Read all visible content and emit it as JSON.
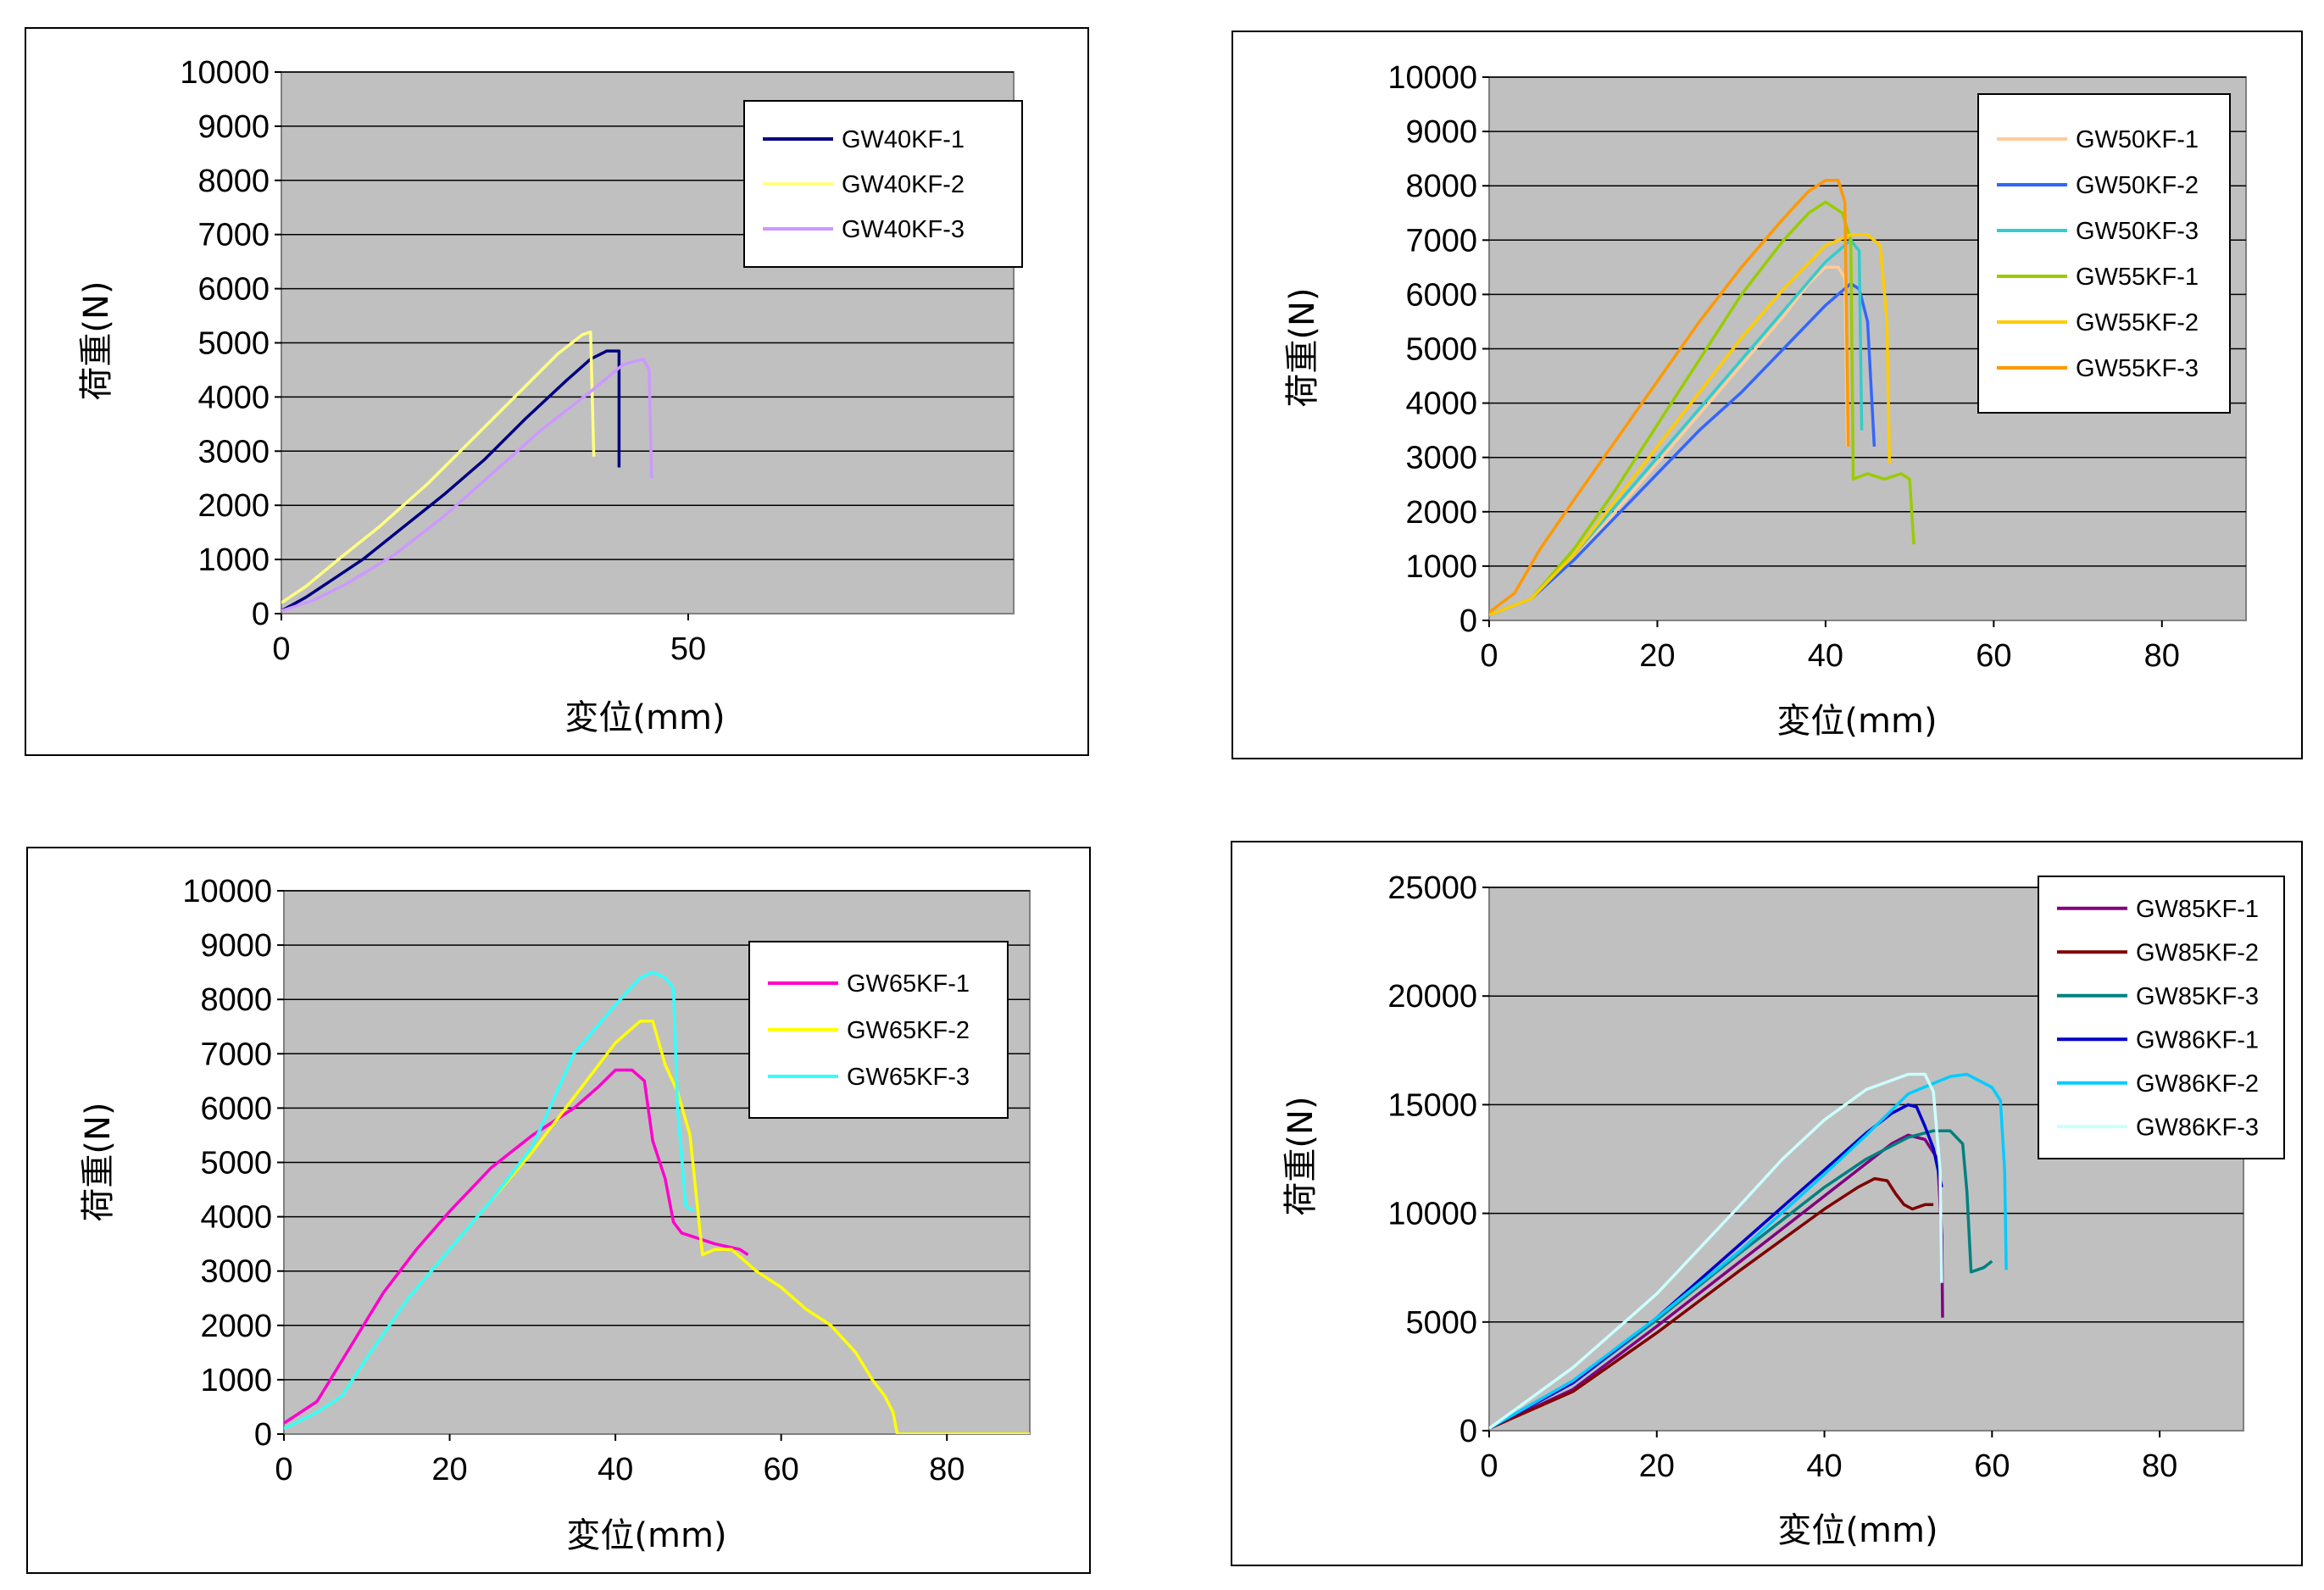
{
  "chart_data": [
    {
      "type": "line",
      "xlabel": "変位(mm)",
      "ylabel": "荷重(N)",
      "xlim": [
        0,
        90
      ],
      "ylim": [
        0,
        10000
      ],
      "xticks": [
        0,
        50
      ],
      "yticks": [
        0,
        1000,
        2000,
        3000,
        4000,
        5000,
        6000,
        7000,
        8000,
        9000,
        10000
      ],
      "grid": true,
      "legend": "top-right",
      "series": [
        {
          "name": "GW40KF-1",
          "color": "#000080",
          "x": [
            0,
            3,
            6,
            10,
            15,
            20,
            25,
            30,
            35,
            38,
            40,
            41.5,
            41.5
          ],
          "y": [
            50,
            300,
            600,
            1000,
            1600,
            2200,
            2850,
            3600,
            4300,
            4700,
            4850,
            4850,
            2700
          ]
        },
        {
          "name": "GW40KF-2",
          "color": "#ffff80",
          "x": [
            0,
            3,
            7,
            12,
            18,
            24,
            30,
            34,
            37,
            38,
            38.4
          ],
          "y": [
            200,
            500,
            1000,
            1600,
            2400,
            3300,
            4200,
            4800,
            5150,
            5200,
            2900
          ]
        },
        {
          "name": "GW40KF-3",
          "color": "#cc99ff",
          "x": [
            0,
            4,
            8,
            14,
            20,
            26,
            32,
            38,
            42,
            44.5,
            45.2,
            45.5
          ],
          "y": [
            50,
            250,
            550,
            1100,
            1800,
            2600,
            3400,
            4100,
            4600,
            4700,
            4500,
            2500
          ]
        }
      ]
    },
    {
      "type": "line",
      "xlabel": "変位(mm)",
      "ylabel": "荷重(N)",
      "xlim": [
        0,
        90
      ],
      "ylim": [
        0,
        10000
      ],
      "xticks": [
        0,
        20,
        40,
        60,
        80
      ],
      "yticks": [
        0,
        1000,
        2000,
        3000,
        4000,
        5000,
        6000,
        7000,
        8000,
        9000,
        10000
      ],
      "grid": true,
      "legend": "top-right",
      "series": [
        {
          "name": "GW50KF-1",
          "color": "#ffcc99",
          "x": [
            0,
            5,
            10,
            15,
            20,
            25,
            30,
            35,
            38,
            40,
            41.5,
            42.3,
            42.6
          ],
          "y": [
            100,
            400,
            1100,
            2000,
            2900,
            3800,
            4700,
            5600,
            6200,
            6500,
            6500,
            6300,
            3200
          ]
        },
        {
          "name": "GW50KF-2",
          "color": "#3366ff",
          "x": [
            0,
            5,
            10,
            15,
            20,
            25,
            30,
            35,
            40,
            43,
            44,
            45,
            45.8
          ],
          "y": [
            100,
            400,
            1100,
            1900,
            2700,
            3500,
            4200,
            5000,
            5800,
            6200,
            6100,
            5500,
            3200
          ]
        },
        {
          "name": "GW50KF-3",
          "color": "#33cccc",
          "x": [
            0,
            5,
            10,
            15,
            20,
            25,
            30,
            35,
            40,
            43,
            44,
            44.3
          ],
          "y": [
            100,
            400,
            1200,
            2100,
            3000,
            3900,
            4800,
            5700,
            6600,
            7000,
            6800,
            3500
          ]
        },
        {
          "name": "GW55KF-1",
          "color": "#99cc00",
          "x": [
            0,
            5,
            10,
            15,
            20,
            25,
            30,
            35,
            38,
            40,
            42,
            43,
            43.3,
            45,
            47,
            49,
            50,
            50.5
          ],
          "y": [
            100,
            400,
            1300,
            2400,
            3600,
            4800,
            6000,
            7000,
            7500,
            7700,
            7500,
            7000,
            2600,
            2700,
            2600,
            2700,
            2600,
            1400
          ]
        },
        {
          "name": "GW55KF-2",
          "color": "#ffcc00",
          "x": [
            0,
            5,
            10,
            15,
            20,
            25,
            30,
            35,
            40,
            43,
            45,
            46.5,
            47.3,
            47.6
          ],
          "y": [
            100,
            400,
            1200,
            2200,
            3200,
            4200,
            5200,
            6100,
            6900,
            7100,
            7100,
            6900,
            5500,
            2900
          ]
        },
        {
          "name": "GW55KF-3",
          "color": "#ff9900",
          "x": [
            0,
            3,
            6,
            10,
            15,
            20,
            25,
            30,
            35,
            38,
            40,
            41.5,
            42.3,
            42.7
          ],
          "y": [
            150,
            500,
            1300,
            2200,
            3300,
            4400,
            5500,
            6500,
            7400,
            7900,
            8100,
            8100,
            7700,
            3200
          ]
        }
      ]
    },
    {
      "type": "line",
      "xlabel": "変位(mm)",
      "ylabel": "荷重(N)",
      "xlim": [
        0,
        90
      ],
      "ylim": [
        0,
        10000
      ],
      "xticks": [
        0,
        20,
        40,
        60,
        80
      ],
      "yticks": [
        0,
        1000,
        2000,
        3000,
        4000,
        5000,
        6000,
        7000,
        8000,
        9000,
        10000
      ],
      "grid": true,
      "legend": "top-right",
      "series": [
        {
          "name": "GW65KF-1",
          "color": "#ff00cc",
          "x": [
            0,
            4,
            8,
            12,
            16,
            20,
            25,
            30,
            35,
            38,
            40,
            42,
            43.5,
            44.5,
            46,
            47,
            48,
            50,
            52,
            55,
            56
          ],
          "y": [
            200,
            600,
            1600,
            2600,
            3400,
            4100,
            4900,
            5500,
            6000,
            6400,
            6700,
            6700,
            6500,
            5400,
            4700,
            3900,
            3700,
            3600,
            3500,
            3400,
            3300
          ]
        },
        {
          "name": "GW65KF-2",
          "color": "#ffff00",
          "x": [
            0,
            4,
            7,
            10,
            15,
            20,
            25,
            30,
            35,
            40,
            43,
            44.5,
            46,
            47.5,
            49,
            50.5,
            52,
            54,
            57,
            60,
            63,
            66,
            69,
            71,
            72.5,
            73.5,
            74,
            80,
            90
          ],
          "y": [
            100,
            400,
            700,
            1400,
            2500,
            3400,
            4300,
            5200,
            6200,
            7200,
            7600,
            7600,
            6800,
            6300,
            5500,
            3300,
            3400,
            3400,
            3000,
            2700,
            2300,
            2000,
            1500,
            1000,
            700,
            400,
            0,
            0,
            0
          ]
        },
        {
          "name": "GW65KF-3",
          "color": "#33ffff",
          "x": [
            0,
            4,
            7,
            10,
            15,
            20,
            25,
            30,
            35,
            40,
            43,
            44.5,
            46,
            47,
            47.5,
            48.5,
            49.5
          ],
          "y": [
            100,
            400,
            700,
            1400,
            2500,
            3400,
            4300,
            5300,
            7000,
            7900,
            8400,
            8500,
            8400,
            8200,
            6000,
            4200,
            4100
          ]
        }
      ]
    },
    {
      "type": "line",
      "xlabel": "変位(mm)",
      "ylabel": "荷重(N)",
      "xlim": [
        0,
        90
      ],
      "ylim": [
        0,
        25000
      ],
      "xticks": [
        0,
        20,
        40,
        60,
        80
      ],
      "yticks": [
        0,
        5000,
        10000,
        15000,
        20000,
        25000
      ],
      "grid": true,
      "legend": "top-right",
      "series": [
        {
          "name": "GW85KF-1",
          "color": "#800080",
          "x": [
            0,
            10,
            20,
            30,
            40,
            45,
            48,
            50,
            52,
            53.5,
            54,
            54.1
          ],
          "y": [
            100,
            1900,
            4800,
            7800,
            10800,
            12300,
            13200,
            13600,
            13400,
            12500,
            9000,
            5200
          ]
        },
        {
          "name": "GW85KF-2",
          "color": "#800000",
          "x": [
            0,
            10,
            20,
            30,
            35,
            40,
            44,
            46,
            47.5,
            48.5,
            49.5,
            50.5,
            52,
            53
          ],
          "y": [
            100,
            1800,
            4500,
            7400,
            8800,
            10200,
            11200,
            11600,
            11500,
            10900,
            10400,
            10200,
            10400,
            10400
          ]
        },
        {
          "name": "GW85KF-3",
          "color": "#008080",
          "x": [
            0,
            10,
            20,
            30,
            40,
            45,
            50,
            53,
            55,
            56.5,
            57,
            57.5,
            59,
            60
          ],
          "y": [
            100,
            2200,
            5100,
            8200,
            11200,
            12500,
            13500,
            13800,
            13800,
            13200,
            11000,
            7300,
            7500,
            7800
          ]
        },
        {
          "name": "GW86KF-1",
          "color": "#0000cc",
          "x": [
            0,
            10,
            20,
            30,
            40,
            45,
            48,
            50,
            51,
            52,
            53,
            54
          ],
          "y": [
            100,
            2200,
            5200,
            8600,
            12000,
            13700,
            14600,
            15000,
            14900,
            14000,
            13000,
            11200
          ]
        },
        {
          "name": "GW86KF-2",
          "color": "#00ccff",
          "x": [
            0,
            10,
            20,
            30,
            40,
            45,
            50,
            55,
            57,
            58.5,
            60,
            61,
            61.5,
            61.7
          ],
          "y": [
            100,
            2300,
            5200,
            8300,
            11800,
            13600,
            15500,
            16300,
            16400,
            16100,
            15800,
            15200,
            12000,
            7400
          ]
        },
        {
          "name": "GW86KF-3",
          "color": "#ccffff",
          "x": [
            0,
            10,
            20,
            30,
            35,
            40,
            45,
            50,
            52,
            53,
            53.8,
            54
          ],
          "y": [
            100,
            2900,
            6300,
            10400,
            12500,
            14300,
            15700,
            16400,
            16400,
            15600,
            12000,
            6800
          ]
        }
      ]
    }
  ]
}
